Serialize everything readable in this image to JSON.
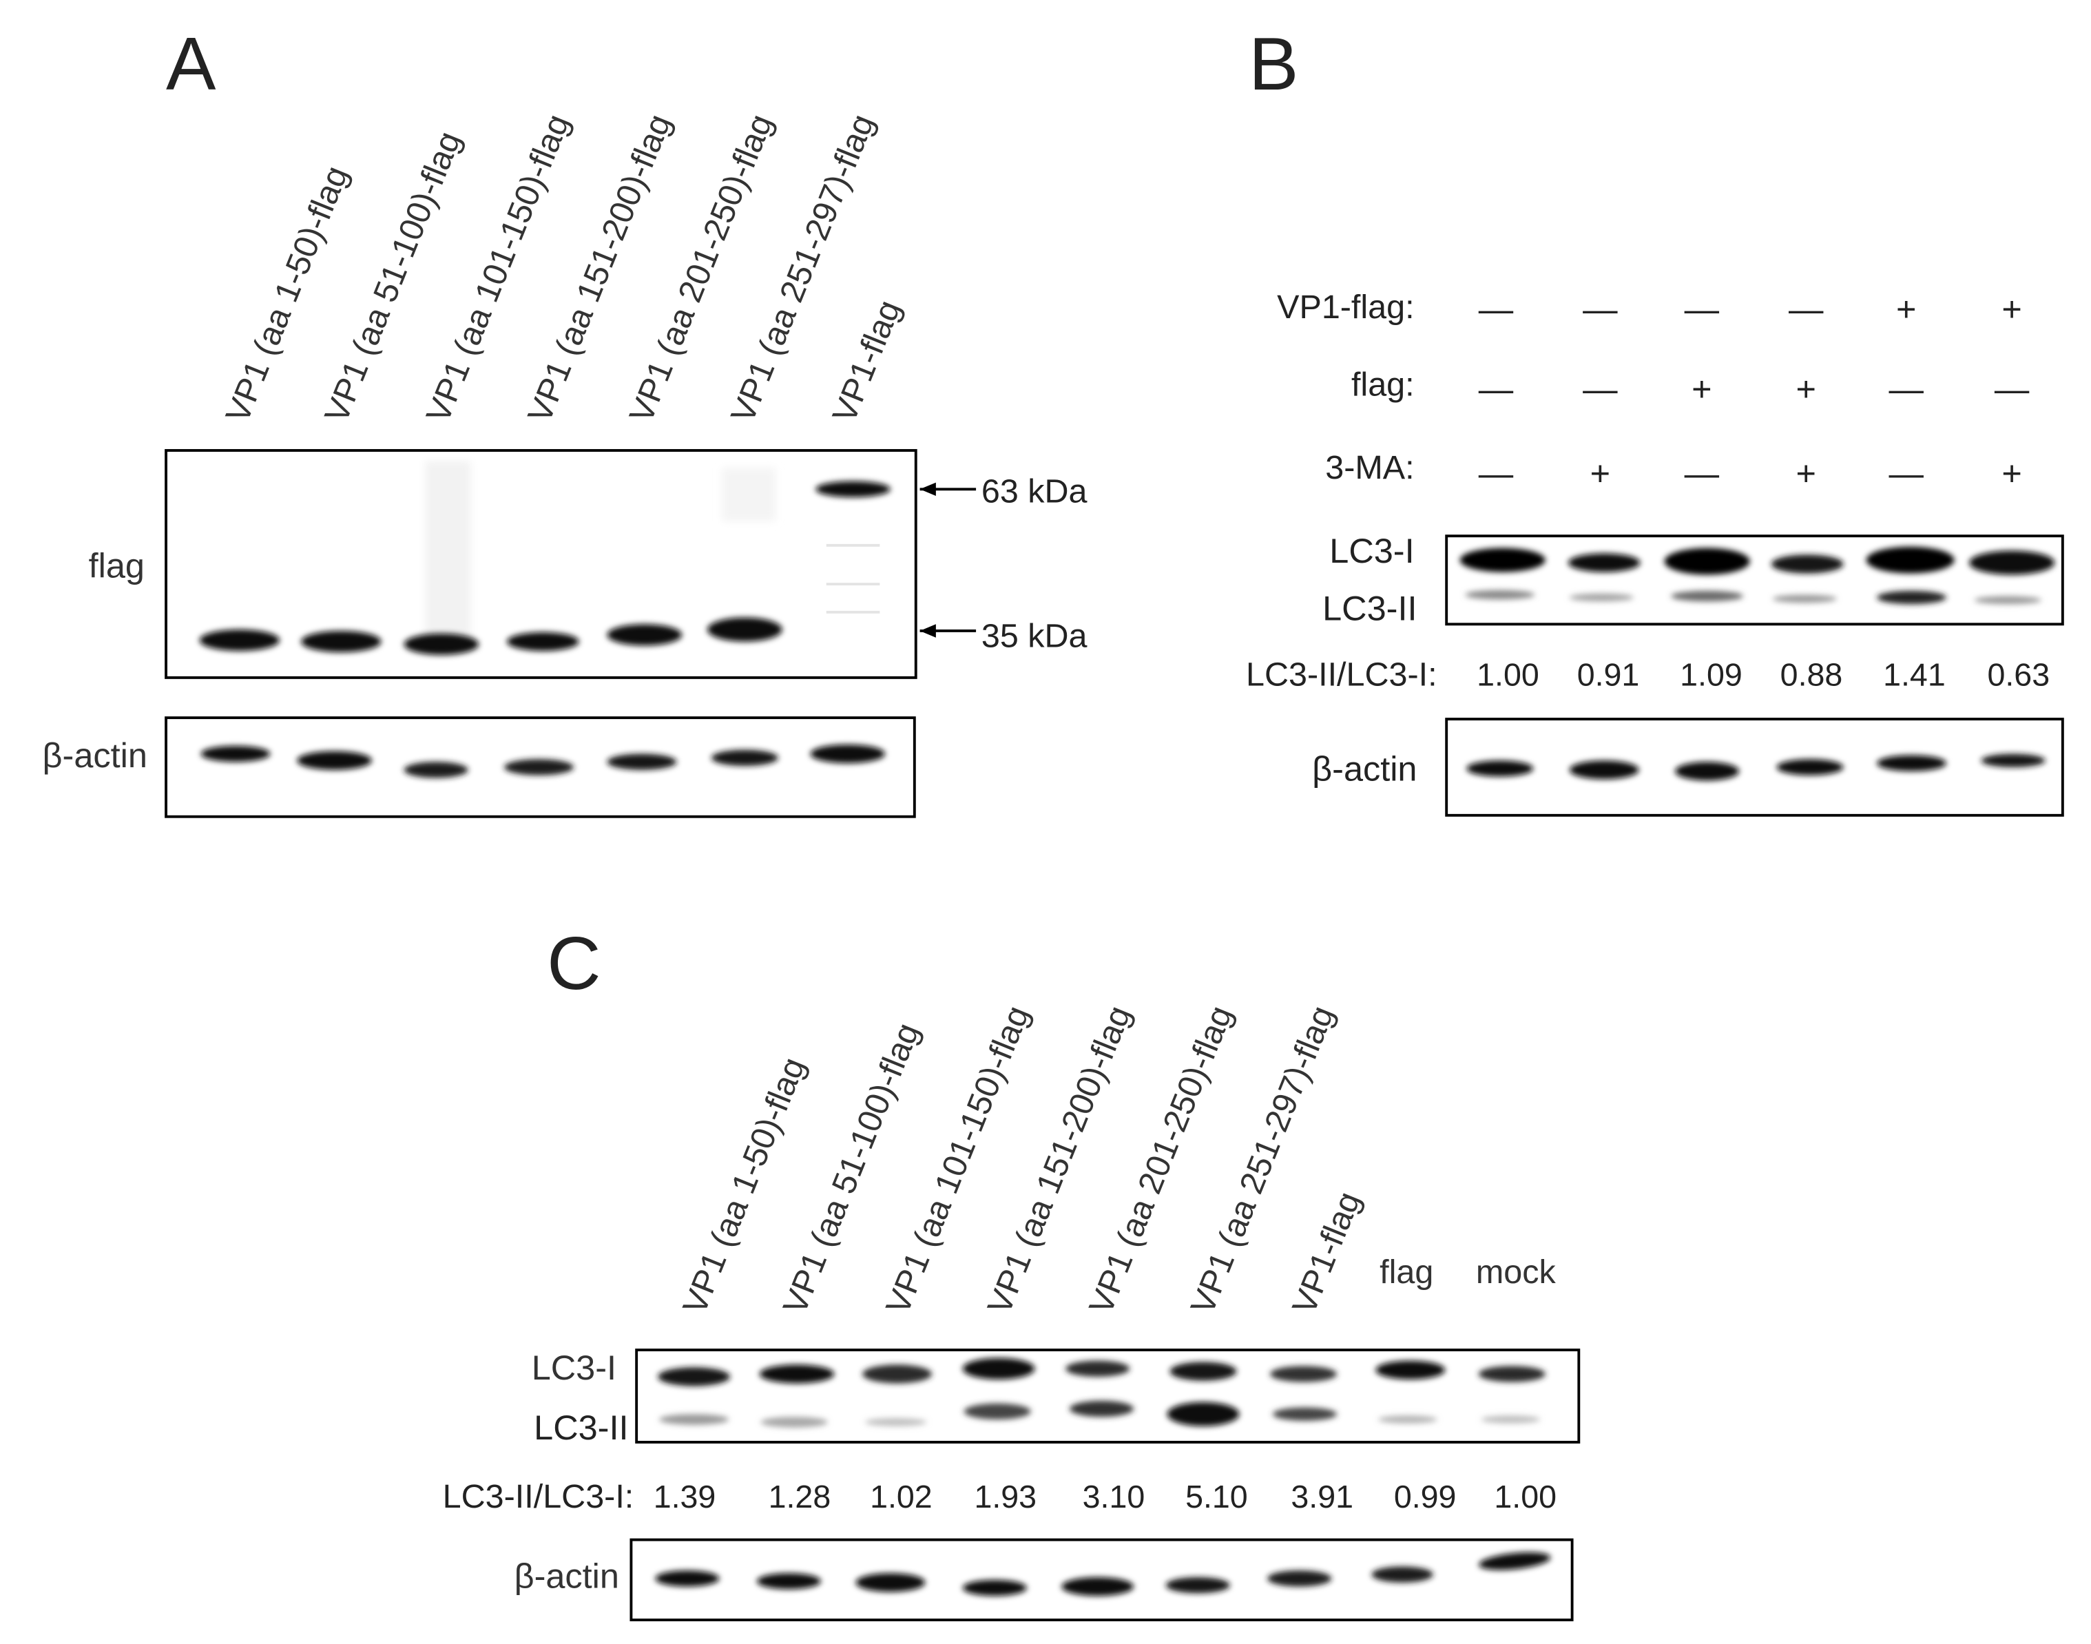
{
  "panelA": {
    "letter": "A",
    "lanes": [
      "VP1 (aa 1-50)-flag",
      "VP1 (aa 51-100)-flag",
      "VP1 (aa 101-150)-flag",
      "VP1 (aa 151-200)-flag",
      "VP1 (aa 201-250)-flag",
      "VP1 (aa 251-297)-flag",
      "VP1-flag"
    ],
    "blot_labels": [
      "flag",
      "β-actin"
    ],
    "markers": [
      "63 kDa",
      "35 kDa"
    ]
  },
  "panelB": {
    "letter": "B",
    "conditions": [
      {
        "label": "VP1-flag:",
        "signs": [
          "—",
          "—",
          "—",
          "—",
          "+",
          "+"
        ]
      },
      {
        "label": "flag:",
        "signs": [
          "—",
          "—",
          "+",
          "+",
          "—",
          "—"
        ]
      },
      {
        "label": "3-MA:",
        "signs": [
          "—",
          "+",
          "—",
          "+",
          "—",
          "+"
        ]
      }
    ],
    "band_labels": [
      "LC3-I",
      "LC3-II"
    ],
    "ratio_label": "LC3-II/LC3-I:",
    "ratios": [
      "1.00",
      "0.91",
      "1.09",
      "0.88",
      "1.41",
      "0.63"
    ],
    "actin_label": "β-actin"
  },
  "panelC": {
    "letter": "C",
    "lanes": [
      "VP1 (aa 1-50)-flag",
      "VP1 (aa 51-100)-flag",
      "VP1 (aa 101-150)-flag",
      "VP1 (aa 151-200)-flag",
      "VP1 (aa 201-250)-flag",
      "VP1 (aa 251-297)-flag",
      "VP1-flag"
    ],
    "extra_lanes": [
      "flag",
      "mock"
    ],
    "band_labels": [
      "LC3-I",
      "LC3-II"
    ],
    "ratio_label": "LC3-II/LC3-I:",
    "ratios": [
      "1.39",
      "1.28",
      "1.02",
      "1.93",
      "3.10",
      "5.10",
      "3.91",
      "0.99",
      "1.00"
    ],
    "actin_label": "β-actin"
  }
}
